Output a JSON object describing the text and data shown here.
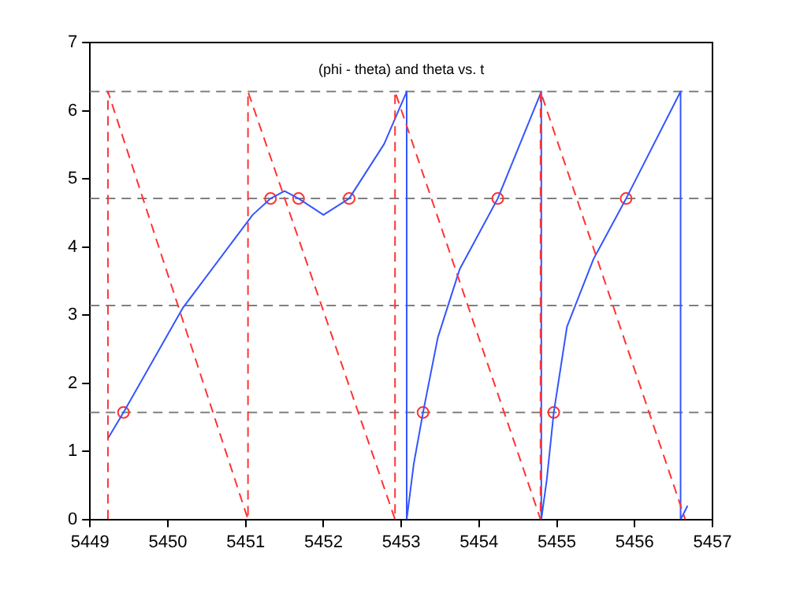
{
  "chart_data": {
    "type": "line",
    "title": "(phi - theta) and theta vs. t",
    "xlim": [
      5449,
      5457
    ],
    "xticks": [
      5449,
      5450,
      5451,
      5452,
      5453,
      5454,
      5455,
      5456,
      5457
    ],
    "ylim": [
      0,
      7
    ],
    "yticks": [
      0,
      1,
      2,
      3,
      4,
      5,
      6,
      7
    ],
    "grid": false,
    "legend": false,
    "series": [
      {
        "type": "line",
        "color": "#ff3333",
        "line_style": "dashed",
        "marker": "none",
        "x": [
          5449.23,
          5449.23,
          5451.03,
          5451.03,
          5452.92,
          5452.92,
          5454.79,
          5454.79,
          5456.65
        ],
        "values": [
          0,
          6.28,
          0,
          6.28,
          0,
          6.28,
          0,
          6.28,
          0
        ]
      },
      {
        "type": "line",
        "color": "#3355ff",
        "line_style": "solid",
        "marker": "none",
        "x": [
          5449.23,
          5449.43,
          5450.19,
          5451.09,
          5451.32,
          5451.5,
          5451.68,
          5452.0,
          5452.33,
          5452.78,
          5453.07,
          5453.07,
          5453.16,
          5453.28,
          5453.47,
          5453.75,
          5454.24,
          5454.8,
          5454.8,
          5454.87,
          5454.96,
          5455.13,
          5455.47,
          5455.89,
          5456.59,
          5456.59,
          5456.68
        ],
        "values": [
          1.19,
          1.57,
          3.1,
          4.47,
          4.71,
          4.82,
          4.71,
          4.47,
          4.71,
          5.51,
          6.28,
          0,
          0.81,
          1.57,
          2.67,
          3.67,
          4.71,
          6.28,
          0,
          0.58,
          1.57,
          2.83,
          3.82,
          4.71,
          6.28,
          0,
          0.2
        ]
      },
      {
        "type": "scatter",
        "color": "#ff3333",
        "marker": "circle",
        "x": [
          5449.43,
          5451.32,
          5451.68,
          5452.33,
          5453.28,
          5454.24,
          5454.96,
          5455.89
        ],
        "values": [
          1.57,
          4.71,
          4.71,
          4.71,
          1.57,
          4.71,
          1.57,
          4.71
        ]
      }
    ],
    "ref_lines": [
      {
        "axis": "y",
        "value": 1.57,
        "color": "#808080",
        "line_style": "dashed"
      },
      {
        "axis": "y",
        "value": 3.14,
        "color": "#808080",
        "line_style": "dashed"
      },
      {
        "axis": "y",
        "value": 4.71,
        "color": "#808080",
        "line_style": "dashed"
      },
      {
        "axis": "y",
        "value": 6.28,
        "color": "#808080",
        "line_style": "dashed"
      }
    ]
  }
}
